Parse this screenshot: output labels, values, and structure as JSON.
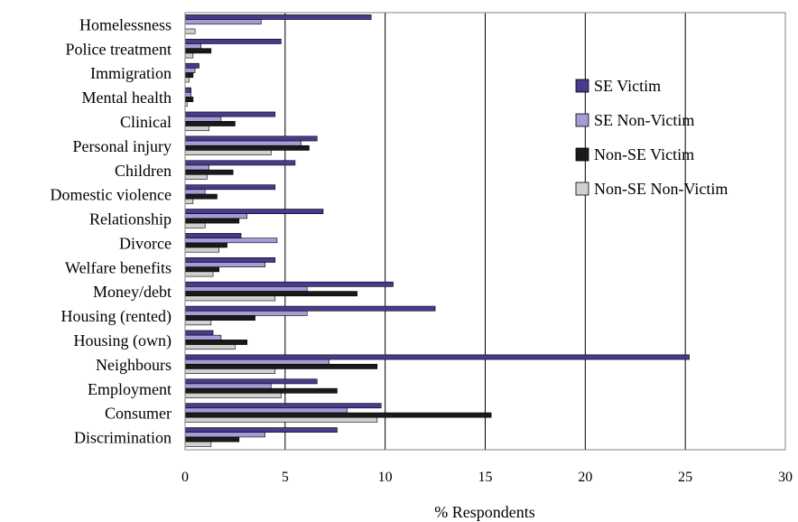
{
  "chart_data": {
    "type": "bar",
    "orientation": "horizontal",
    "title": "",
    "xlabel": "% Respondents",
    "ylabel": "",
    "xlim": [
      0,
      30
    ],
    "xticks": [
      0,
      5,
      10,
      15,
      20,
      25,
      30
    ],
    "grid": "vertical",
    "legend_position": "right",
    "categories": [
      "Homelessness",
      "Police treatment",
      "Immigration",
      "Mental health",
      "Clinical",
      "Personal injury",
      "Children",
      "Domestic violence",
      "Relationship",
      "Divorce",
      "Welfare benefits",
      "Money/debt",
      "Housing (rented)",
      "Housing (own)",
      "Neighbours",
      "Employment",
      "Consumer",
      "Discrimination"
    ],
    "series": [
      {
        "name": "SE Victim",
        "color": "#4b3a8c",
        "values": [
          9.3,
          4.8,
          0.7,
          0.3,
          4.5,
          6.6,
          5.5,
          4.5,
          6.9,
          2.8,
          4.5,
          10.4,
          12.5,
          1.4,
          25.2,
          6.6,
          9.8,
          7.6
        ]
      },
      {
        "name": "SE Non-Victim",
        "color": "#a79bd6",
        "values": [
          3.8,
          0.8,
          0.5,
          0.3,
          1.8,
          5.8,
          1.2,
          1.0,
          3.1,
          4.6,
          4.0,
          6.1,
          6.1,
          1.8,
          7.2,
          4.3,
          8.1,
          4.0
        ]
      },
      {
        "name": "Non-SE Victim",
        "color": "#1a1a1a",
        "values": [
          0.0,
          1.3,
          0.4,
          0.4,
          2.5,
          6.2,
          2.4,
          1.6,
          2.7,
          2.1,
          1.7,
          8.6,
          3.5,
          3.1,
          9.6,
          7.6,
          15.3,
          2.7
        ]
      },
      {
        "name": "Non-SE Non-Victim",
        "color": "#d0d0d0",
        "values": [
          0.5,
          0.4,
          0.2,
          0.1,
          1.2,
          4.3,
          1.1,
          0.4,
          1.0,
          1.7,
          1.4,
          4.5,
          1.3,
          2.5,
          4.5,
          4.8,
          9.6,
          1.3
        ]
      }
    ]
  }
}
